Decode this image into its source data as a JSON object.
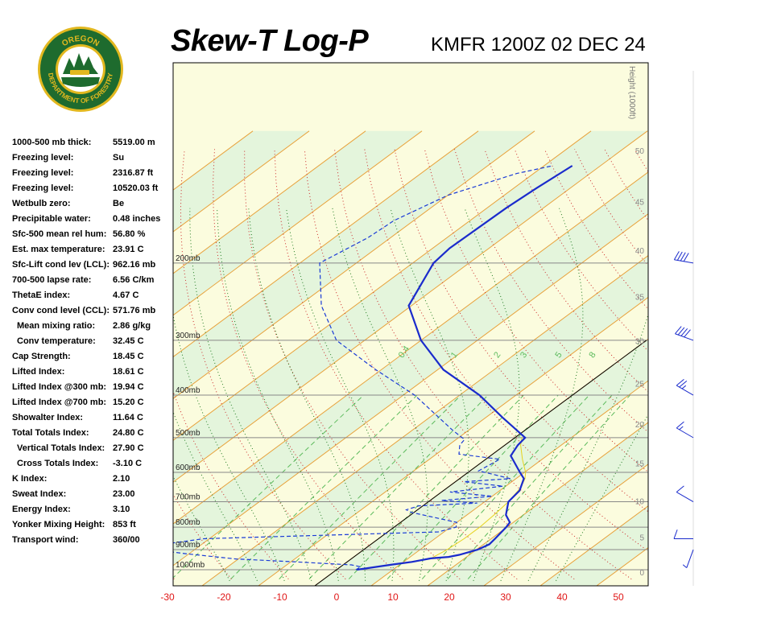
{
  "header": {
    "title": "Skew-T Log-P",
    "station": "KMFR 1200Z 02 DEC 24"
  },
  "logo": {
    "top_text": "OREGON",
    "bottom_text": "DEPARTMENT OF FORESTRY",
    "colors": {
      "ring": "#1e6b2e",
      "gold": "#e2b81f",
      "sky": "#ffffff",
      "trees": "#1e6b2e"
    }
  },
  "indices": [
    {
      "label": "1000-500 mb thick:",
      "value": "5519.00 m"
    },
    {
      "label": "Freezing level:",
      "value": "Su"
    },
    {
      "label": "Freezing level:",
      "value": "2316.87 ft"
    },
    {
      "label": "Freezing level:",
      "value": "10520.03 ft"
    },
    {
      "label": "Wetbulb zero:",
      "value": "Be"
    },
    {
      "label": "Precipitable water:",
      "value": "0.48 inches"
    },
    {
      "label": "Sfc-500 mean rel hum:",
      "value": "56.80 %"
    },
    {
      "label": "Est. max temperature:",
      "value": "23.91 C"
    },
    {
      "label": "Sfc-Lift cond lev (LCL):",
      "value": "962.16 mb"
    },
    {
      "label": "700-500 lapse rate:",
      "value": "6.56 C/km"
    },
    {
      "label": "ThetaE index:",
      "value": "4.67 C"
    },
    {
      "label": "Conv cond level (CCL):",
      "value": "571.76 mb"
    },
    {
      "label": "Mean mixing ratio:",
      "value": "2.86 g/kg",
      "indent": true
    },
    {
      "label": "Conv temperature:",
      "value": "32.45 C",
      "indent": true
    },
    {
      "label": "Cap Strength:",
      "value": "18.45 C"
    },
    {
      "label": "Lifted Index:",
      "value": "18.61 C"
    },
    {
      "label": "Lifted Index @300 mb:",
      "value": "19.94 C"
    },
    {
      "label": "Lifted Index @700 mb:",
      "value": "15.20 C"
    },
    {
      "label": "Showalter Index:",
      "value": "11.64 C"
    },
    {
      "label": "Total Totals Index:",
      "value": "24.80 C"
    },
    {
      "label": "Vertical Totals Index:",
      "value": "27.90 C",
      "indent": true
    },
    {
      "label": "Cross Totals Index:",
      "value": "-3.10 C",
      "indent": true
    },
    {
      "label": "K Index:",
      "value": "2.10"
    },
    {
      "label": "Sweat Index:",
      "value": "23.00"
    },
    {
      "label": "Energy Index:",
      "value": "3.10"
    },
    {
      "label": "Yonker Mixing Height:",
      "value": "853 ft"
    },
    {
      "label": "Transport wind:",
      "value": "360/00"
    }
  ],
  "chart_data": {
    "type": "line",
    "chart_kind": "skew-t log-p",
    "x_tick_labels": [
      "-30",
      "-20",
      "-10",
      "0",
      "10",
      "20",
      "30",
      "40",
      "50"
    ],
    "pressure_labels": [
      "200mb",
      "300mb",
      "400mb",
      "500mb",
      "600mb",
      "700mb",
      "800mb",
      "900mb",
      "1000mb"
    ],
    "height_axis_label": "Height (1000ft)",
    "height_ticks": [
      "0",
      "5",
      "10",
      "15",
      "20",
      "25",
      "30",
      "35",
      "40",
      "45",
      "50"
    ],
    "mixing_ratio_labels": [
      "0.4",
      "1",
      "2",
      "3",
      "5",
      "8"
    ],
    "temperature_profile": [
      [
        1000,
        3.6
      ],
      [
        975,
        8.3
      ],
      [
        960,
        11.5
      ],
      [
        942,
        14.0
      ],
      [
        935,
        16.8
      ],
      [
        925,
        18.2
      ],
      [
        900,
        20.2
      ],
      [
        875,
        21.0
      ],
      [
        850,
        20.7
      ],
      [
        800,
        19.9
      ],
      [
        780,
        19.4
      ],
      [
        750,
        16.9
      ],
      [
        700,
        14.2
      ],
      [
        660,
        13.5
      ],
      [
        620,
        11.4
      ],
      [
        600,
        9.2
      ],
      [
        550,
        3.6
      ],
      [
        520,
        2.3
      ],
      [
        500,
        1.8
      ],
      [
        450,
        -7.0
      ],
      [
        400,
        -16.5
      ],
      [
        350,
        -29.0
      ],
      [
        300,
        -40.0
      ],
      [
        250,
        -50.5
      ],
      [
        200,
        -56.3
      ],
      [
        185,
        -57.0
      ],
      [
        150,
        -56.6
      ],
      [
        135,
        -56.0
      ],
      [
        120,
        -55.0
      ]
    ],
    "dewpoint_profile": [
      [
        1000,
        3.4
      ],
      [
        985,
        3.6
      ],
      [
        975,
        1.5
      ],
      [
        960,
        -9.0
      ],
      [
        945,
        -20.5
      ],
      [
        920,
        -30.3
      ],
      [
        910,
        -33.8
      ],
      [
        895,
        -45.0
      ],
      [
        880,
        -38.0
      ],
      [
        850,
        -31.0
      ],
      [
        820,
        9.0
      ],
      [
        800,
        11.0
      ],
      [
        780,
        10.0
      ],
      [
        740,
        -0.5
      ],
      [
        730,
        -2.0
      ],
      [
        715,
        -0.7
      ],
      [
        705,
        9.0
      ],
      [
        695,
        2.0
      ],
      [
        680,
        10.0
      ],
      [
        665,
        1.5
      ],
      [
        645,
        9.5
      ],
      [
        630,
        1.5
      ],
      [
        620,
        9.0
      ],
      [
        595,
        1.5
      ],
      [
        560,
        2.5
      ],
      [
        545,
        -6.0
      ],
      [
        520,
        -8.0
      ],
      [
        505,
        -8.5
      ],
      [
        480,
        -13.0
      ],
      [
        400,
        -28.0
      ],
      [
        350,
        -41.0
      ],
      [
        300,
        -55.0
      ],
      [
        250,
        -66.0
      ],
      [
        200,
        -76.5
      ],
      [
        175,
        -74.0
      ],
      [
        160,
        -73.5
      ],
      [
        140,
        -70.0
      ],
      [
        125,
        -63.0
      ],
      [
        120,
        -58.5
      ]
    ],
    "parcel_trace": [
      [
        975,
        8.5
      ],
      [
        942,
        14.0
      ],
      [
        900,
        14.8
      ],
      [
        850,
        15.2
      ],
      [
        800,
        15.2
      ],
      [
        750,
        14.8
      ],
      [
        700,
        14.2
      ],
      [
        650,
        13.0
      ],
      [
        620,
        11.6
      ],
      [
        600,
        10.2
      ],
      [
        560,
        6.5
      ],
      [
        520,
        2.8
      ],
      [
        500,
        1.2
      ]
    ],
    "wind_barbs": [
      [
        1000,
        0,
        0
      ],
      [
        900,
        200,
        5
      ],
      [
        850,
        270,
        10
      ],
      [
        700,
        300,
        10
      ],
      [
        500,
        300,
        15
      ],
      [
        400,
        300,
        25
      ],
      [
        300,
        290,
        40
      ],
      [
        200,
        280,
        40
      ]
    ],
    "pressure_range": [
      1000,
      120
    ],
    "temperature_range": [
      -30,
      50
    ],
    "grid": true
  }
}
